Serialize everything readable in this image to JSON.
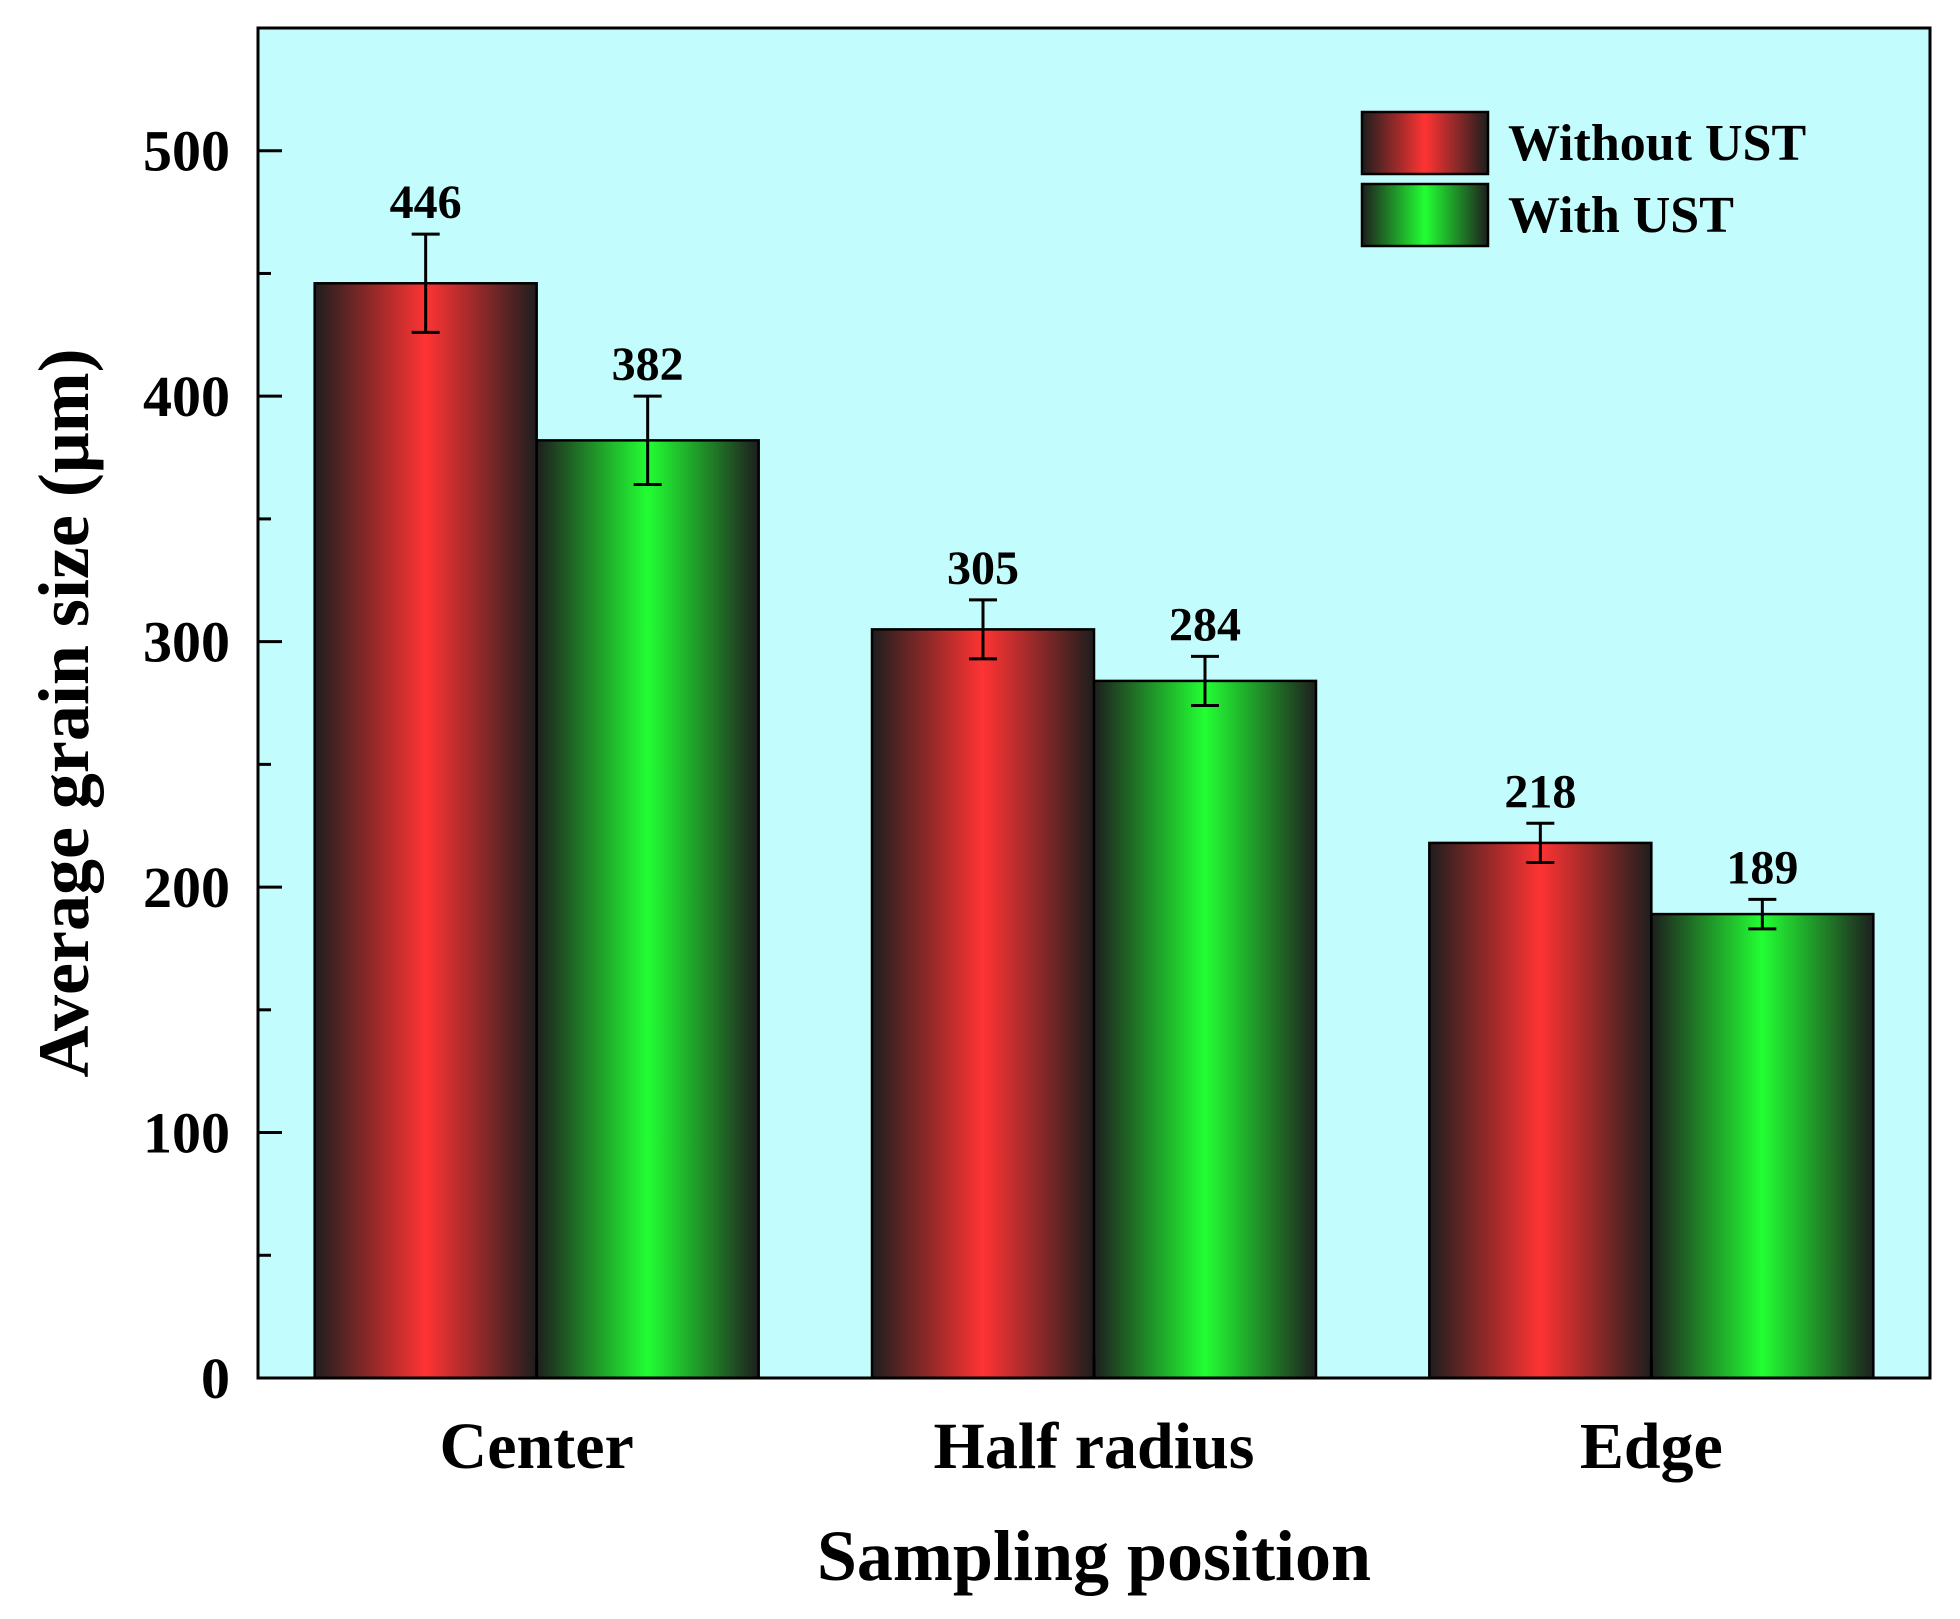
{
  "chart_data": {
    "type": "bar",
    "xlabel": "Sampling position",
    "ylabel": "Average grain size (μm)",
    "categories": [
      "Center",
      "Half radius",
      "Edge"
    ],
    "series": [
      {
        "name": "Without UST",
        "values": [
          446,
          305,
          218
        ],
        "errors": [
          20,
          12,
          8
        ],
        "color": "#ff3333"
      },
      {
        "name": "With UST",
        "values": [
          382,
          284,
          189
        ],
        "errors": [
          18,
          10,
          6
        ],
        "color": "#22ff33"
      }
    ],
    "ylim": [
      0,
      550
    ],
    "yticks": [
      0,
      100,
      200,
      300,
      400,
      500
    ],
    "background_color": "#c2fcfc",
    "legend_position": "top-right",
    "grid": false
  }
}
